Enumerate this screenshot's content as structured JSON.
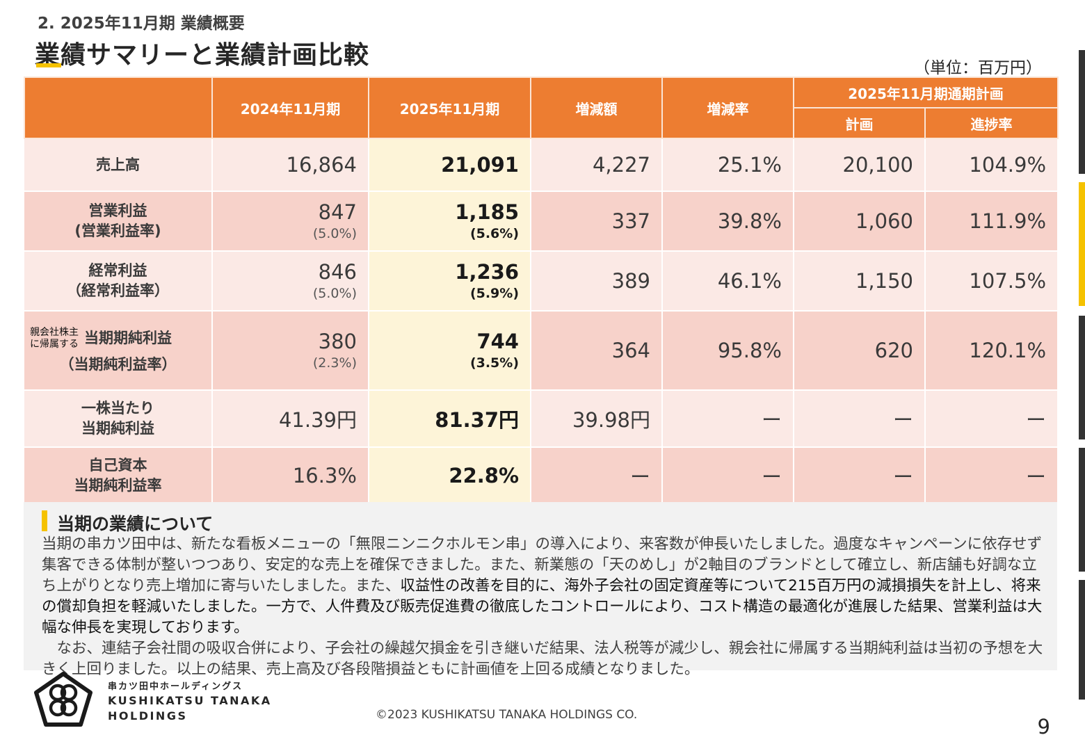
{
  "header": {
    "section_label": "2. 2025年11月期 業績概要",
    "title": "業績サマリーと業績計画比較",
    "unit_note": "（単位：百万円）"
  },
  "table": {
    "columns": {
      "fy2024": "2024年11月期",
      "fy2025": "2025年11月期",
      "change_amount": "増減額",
      "change_rate": "増減率",
      "plan_group": "2025年11月期通期計画",
      "plan": "計画",
      "progress": "進捗率"
    },
    "rows": [
      {
        "label": "売上高",
        "fy2024": "16,864",
        "fy2025": "21,091",
        "change_amount": "4,227",
        "change_rate": "25.1%",
        "plan": "20,100",
        "progress": "104.9%"
      },
      {
        "label": "営業利益",
        "sub_label": "(営業利益率)",
        "fy2024": "847",
        "fy2024_sub": "(5.0%)",
        "fy2025": "1,185",
        "fy2025_sub": "(5.6%)",
        "change_amount": "337",
        "change_rate": "39.8%",
        "plan": "1,060",
        "progress": "111.9%"
      },
      {
        "label": "経常利益",
        "sub_label": "（経常利益率）",
        "fy2024": "846",
        "fy2024_sub": "(5.0%)",
        "fy2025": "1,236",
        "fy2025_sub": "(5.9%)",
        "change_amount": "389",
        "change_rate": "46.1%",
        "plan": "1,150",
        "progress": "107.5%"
      },
      {
        "prefix_line1": "親会社株主",
        "prefix_line2": "に帰属する",
        "label": "当期期純利益",
        "sub_label": "（当期純利益率）",
        "fy2024": "380",
        "fy2024_sub": "(2.3%)",
        "fy2025": "744",
        "fy2025_sub": "(3.5%)",
        "change_amount": "364",
        "change_rate": "95.8%",
        "plan": "620",
        "progress": "120.1%"
      },
      {
        "label": "一株当たり",
        "sub_label": "当期純利益",
        "fy2024": "41.39円",
        "fy2025": "81.37円",
        "change_amount": "39.98円",
        "change_rate": "ー",
        "plan": "ー",
        "progress": "ー"
      },
      {
        "label": "自己資本",
        "sub_label": "当期純利益率",
        "fy2024": "16.3%",
        "fy2025": "22.8%",
        "change_amount": "ー",
        "change_rate": "ー",
        "plan": "ー",
        "progress": "ー"
      }
    ]
  },
  "commentary": {
    "title": "当期の業績について",
    "paragraph1_part1": "当期の串カツ田中は、新たな看板メニューの「無限ニンニクホルモン串」の導入により、来客数が伸長いたしました。過度なキャンペーンに依存せず集客できる体制が整いつつあり、安定的な売上を確保できました。また、新業態の「天のめし」が2軸目のブランドとして確立し、新店舗も好調な立ち上がりとなり売上増加に寄与いたしました。また、",
    "paragraph1_part2": "収益性の改善を目的に、海外子会社の固定資産等について215百万円の減損損失を計上し、将来の償却負担を軽減いたしました。一方で、人件費及び販売促進費の徹底したコントロールにより、コスト構造の最適化が進展した結果、営業利益は大幅な伸長を実現しております。",
    "paragraph2": "　なお、連結子会社間の吸収合併により、子会社の繰越欠損金を引き継いだ結果、法人税等が減少し、親会社に帰属する当期純利益は当初の予想を大きく上回りました。以上の結果、売上高及び各段階損益ともに計画値を上回る成績となりました。"
  },
  "footer": {
    "brand_jp": "串カツ田中ホールディングス",
    "brand_en_line1": "KUSHIKATSU TANAKA",
    "brand_en_line2": "HOLDINGS",
    "copyright": "©2023 KUSHIKATSU TANAKA HOLDINGS CO.",
    "page_number": "9"
  }
}
